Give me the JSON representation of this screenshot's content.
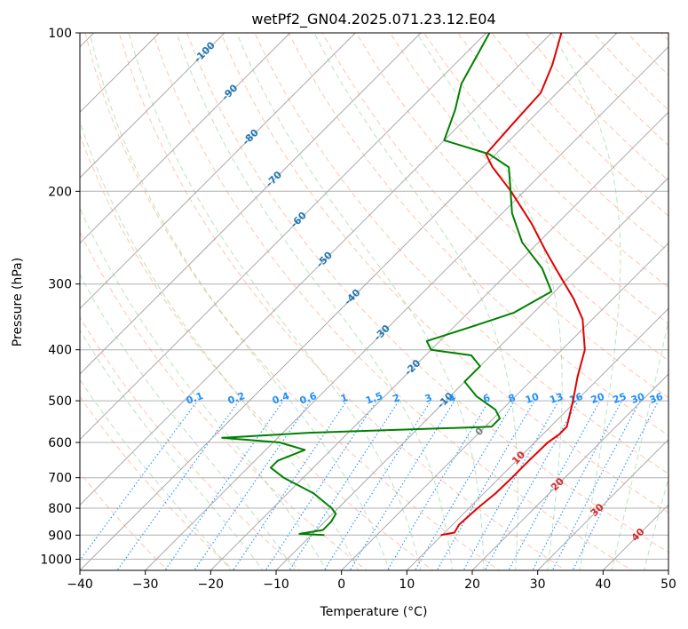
{
  "chart_data": {
    "type": "skew-t",
    "title": "wetPf2_GN04.2025.071.23.12.E04",
    "xlabel": "Temperature (°C)",
    "ylabel": "Pressure (hPa)",
    "xlim": [
      -40,
      50
    ],
    "ylim_pressure": [
      1050,
      100
    ],
    "log_pressure_axis": true,
    "x_ticks": [
      "−40",
      "−30",
      "−20",
      "−10",
      "0",
      "10",
      "20",
      "30",
      "40",
      "50"
    ],
    "y_ticks": [
      "100",
      "200",
      "300",
      "400",
      "500",
      "600",
      "700",
      "800",
      "900",
      "1000"
    ],
    "grid": true,
    "series": [
      {
        "role": "temperature",
        "color": "#e00000",
        "points": [
          {
            "p": 900,
            "t": 9.8
          },
          {
            "p": 890,
            "t": 11.5
          },
          {
            "p": 860,
            "t": 11.0
          },
          {
            "p": 800,
            "t": 11.3
          },
          {
            "p": 750,
            "t": 11.8
          },
          {
            "p": 700,
            "t": 11.9
          },
          {
            "p": 650,
            "t": 11.9
          },
          {
            "p": 600,
            "t": 12.0
          },
          {
            "p": 580,
            "t": 12.5
          },
          {
            "p": 560,
            "t": 12.5
          },
          {
            "p": 500,
            "t": 9.5
          },
          {
            "p": 450,
            "t": 6.5
          },
          {
            "p": 400,
            "t": 3.5
          },
          {
            "p": 350,
            "t": -1.5
          },
          {
            "p": 320,
            "t": -6.0
          },
          {
            "p": 290,
            "t": -11.5
          },
          {
            "p": 260,
            "t": -17.5
          },
          {
            "p": 230,
            "t": -24.0
          },
          {
            "p": 200,
            "t": -32.0
          },
          {
            "p": 180,
            "t": -38.5
          },
          {
            "p": 170,
            "t": -41.5
          },
          {
            "p": 150,
            "t": -42.0
          },
          {
            "p": 130,
            "t": -42.5
          },
          {
            "p": 115,
            "t": -45.0
          },
          {
            "p": 100,
            "t": -48.5
          }
        ]
      },
      {
        "role": "dewpoint",
        "color": "#008000",
        "points": [
          {
            "p": 900,
            "t": -8.0
          },
          {
            "p": 895,
            "t": -12.0
          },
          {
            "p": 880,
            "t": -9.0
          },
          {
            "p": 850,
            "t": -9.0
          },
          {
            "p": 820,
            "t": -9.5
          },
          {
            "p": 800,
            "t": -11.0
          },
          {
            "p": 750,
            "t": -16.0
          },
          {
            "p": 700,
            "t": -23.0
          },
          {
            "p": 670,
            "t": -26.5
          },
          {
            "p": 650,
            "t": -26.5
          },
          {
            "p": 620,
            "t": -24.0
          },
          {
            "p": 600,
            "t": -29.0
          },
          {
            "p": 588,
            "t": -38.5
          },
          {
            "p": 575,
            "t": -26.0
          },
          {
            "p": 560,
            "t": 1.0
          },
          {
            "p": 540,
            "t": 1.0
          },
          {
            "p": 520,
            "t": -1.0
          },
          {
            "p": 490,
            "t": -6.0
          },
          {
            "p": 460,
            "t": -10.0
          },
          {
            "p": 430,
            "t": -10.0
          },
          {
            "p": 410,
            "t": -13.0
          },
          {
            "p": 400,
            "t": -20.0
          },
          {
            "p": 385,
            "t": -22.0
          },
          {
            "p": 360,
            "t": -17.0
          },
          {
            "p": 340,
            "t": -13.0
          },
          {
            "p": 310,
            "t": -10.5
          },
          {
            "p": 280,
            "t": -15.5
          },
          {
            "p": 250,
            "t": -22.5
          },
          {
            "p": 220,
            "t": -28.5
          },
          {
            "p": 195,
            "t": -33.0
          },
          {
            "p": 180,
            "t": -36.0
          },
          {
            "p": 170,
            "t": -41.0
          },
          {
            "p": 160,
            "t": -50.0
          },
          {
            "p": 140,
            "t": -53.0
          },
          {
            "p": 125,
            "t": -56.0
          },
          {
            "p": 110,
            "t": -58.0
          },
          {
            "p": 100,
            "t": -59.5
          }
        ]
      }
    ],
    "reference_lines": {
      "isotherms": "gray solid, skewed 45°",
      "dry_adiabats": "salmon dashed",
      "moist_adiabats": "light green dashed",
      "mixing_ratio_lines": "blue dotted"
    },
    "isotherm_labels": [
      {
        "text": "-100",
        "p": 109,
        "t": -100
      },
      {
        "text": "-90",
        "p": 130,
        "t": -90
      },
      {
        "text": "-80",
        "p": 158,
        "t": -80
      },
      {
        "text": "-70",
        "p": 190,
        "t": -70
      },
      {
        "text": "-60",
        "p": 227,
        "t": -60
      },
      {
        "text": "-50",
        "p": 270,
        "t": -50
      },
      {
        "text": "-40",
        "p": 318,
        "t": -40
      },
      {
        "text": "-30",
        "p": 372,
        "t": -30
      },
      {
        "text": "-20",
        "p": 433,
        "t": -20
      },
      {
        "text": "-10",
        "p": 500,
        "t": -10
      },
      {
        "text": "0",
        "p": 573,
        "t": 0
      },
      {
        "text": "10",
        "p": 643,
        "t": 10
      },
      {
        "text": "20",
        "p": 722,
        "t": 20
      },
      {
        "text": "30",
        "p": 808,
        "t": 30
      },
      {
        "text": "40",
        "p": 900,
        "t": 40
      }
    ],
    "mixing_ratio_labels": [
      "0.1",
      "0.2",
      "0.4",
      "0.6",
      "1",
      "1.5",
      "2",
      "3",
      "4",
      "6",
      "8",
      "10",
      "13",
      "16",
      "20",
      "25",
      "30",
      "36"
    ],
    "colors": {
      "isotherm_label_cold": "#1f77b4",
      "isotherm_label_zero": "#808080",
      "isotherm_label_warm": "#d62728",
      "mixing_ratio_label": "#1e90ff"
    }
  }
}
